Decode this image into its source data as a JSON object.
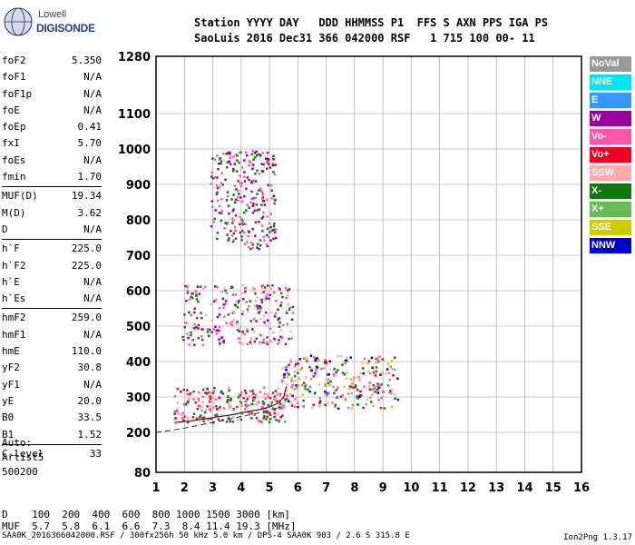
{
  "logo": {
    "brand": "Lowell",
    "name": "DIGISONDE"
  },
  "header": {
    "line1": "Station YYYY DAY   DDD HHMMSS P1  FFS S AXN PPS IGA PS",
    "line2": "SaoLuis 2016 Dec31 366 042000 RSF   1 715 100 00- 11"
  },
  "params": [
    {
      "k": "foF2",
      "v": "5.350"
    },
    {
      "k": "foF1",
      "v": "N/A"
    },
    {
      "k": "foF1p",
      "v": "N/A"
    },
    {
      "k": "foE",
      "v": "N/A"
    },
    {
      "k": "foEp",
      "v": "0.41"
    },
    {
      "k": "fxI",
      "v": "5.70"
    },
    {
      "k": "foEs",
      "v": "N/A"
    },
    {
      "k": "fmin",
      "v": "1.70"
    },
    {
      "sep": true
    },
    {
      "k": "MUF(D)",
      "v": "19.34"
    },
    {
      "k": "M(D)",
      "v": "3.62"
    },
    {
      "k": "D",
      "v": "N/A"
    },
    {
      "sep": true
    },
    {
      "k": "h`F",
      "v": "225.0"
    },
    {
      "k": "h`F2",
      "v": "225.0"
    },
    {
      "k": "h`E",
      "v": "N/A"
    },
    {
      "k": "h`Es",
      "v": "N/A"
    },
    {
      "sep": true
    },
    {
      "k": "hmF2",
      "v": "259.0"
    },
    {
      "k": "hmF1",
      "v": "N/A"
    },
    {
      "k": "hmE",
      "v": "110.0"
    },
    {
      "k": "yF2",
      "v": "30.8"
    },
    {
      "k": "yF1",
      "v": "N/A"
    },
    {
      "k": "yE",
      "v": "20.0"
    },
    {
      "k": "B0",
      "v": "33.5"
    },
    {
      "k": "B1",
      "v": "1.52"
    },
    {
      "sep": true
    },
    {
      "k": "C-level",
      "v": "33"
    }
  ],
  "auto": {
    "l1": "Auto:",
    "l2": "Artist5",
    "l3": "500200"
  },
  "legend": [
    {
      "label": "NoVal",
      "bg": "#999999",
      "fg": "#ffffff"
    },
    {
      "label": "NNE",
      "bg": "#00e5ee",
      "fg": "#ffffff"
    },
    {
      "label": "E",
      "bg": "#3399ff",
      "fg": "#ffffff"
    },
    {
      "label": "W",
      "bg": "#990099",
      "fg": "#ffffff"
    },
    {
      "label": "Vo-",
      "bg": "#ff55aa",
      "fg": "#ffffff"
    },
    {
      "label": "Vo+",
      "bg": "#ee0022",
      "fg": "#ffffff"
    },
    {
      "label": "SSW",
      "bg": "#ffaaaa",
      "fg": "#ffffff"
    },
    {
      "label": "X-",
      "bg": "#117711",
      "fg": "#ffffff"
    },
    {
      "label": "X+",
      "bg": "#66bb55",
      "fg": "#ffffff"
    },
    {
      "label": "SSE",
      "bg": "#cccc00",
      "fg": "#ffffff"
    },
    {
      "label": "NNW",
      "bg": "#0000cc",
      "fg": "#ffffff"
    }
  ],
  "muf_table": {
    "d_label": "D  ",
    "d_values": "  100  200  400  600  800 1000 1500 3000 [km]",
    "m_label": "MUF",
    "m_values": "  5.7  5.8  6.1  6.6  7.3  8.4 11.4 19.3 [MHz]"
  },
  "footer": "SAA0K_2016366042000.RSF / 300fx256h 50 kHz 5.0 km / DPS-4 SAA0K 903 / 2.6 S 315.8 E",
  "version": "Ion2Png 1.3.17",
  "chart_data": {
    "type": "scatter",
    "x_ticks": [
      1,
      2,
      3,
      4,
      5,
      6,
      7,
      8,
      9,
      10,
      11,
      12,
      13,
      14,
      15,
      16
    ],
    "xlim": [
      1,
      16
    ],
    "y_ticks": [
      80,
      200,
      300,
      400,
      500,
      600,
      700,
      800,
      900,
      1000,
      1100,
      1280
    ],
    "y_range": [
      80,
      1280
    ],
    "grid": true,
    "trace": {
      "x": [
        1.7,
        2.2,
        2.7,
        3.2,
        3.7,
        4.2,
        4.7,
        5.0,
        5.3,
        5.5,
        5.6
      ],
      "y": [
        228,
        232,
        238,
        244,
        250,
        258,
        265,
        272,
        282,
        300,
        330
      ]
    },
    "dashed_trace": {
      "x": [
        1.0,
        1.5,
        2.0,
        2.5,
        3.0,
        3.5,
        4.0,
        4.5,
        5.0,
        5.3
      ],
      "y": [
        200,
        205,
        212,
        220,
        228,
        236,
        245,
        253,
        262,
        270
      ]
    },
    "clusters": [
      {
        "x": [
          1.6,
          5.6
        ],
        "y": [
          230,
          330
        ],
        "colors": [
          "#ee0022",
          "#ff55aa",
          "#117711",
          "#ffaaaa"
        ]
      },
      {
        "x": [
          5.4,
          9.5
        ],
        "y": [
          270,
          420
        ],
        "colors": [
          "#ee0022",
          "#ff55aa",
          "#ffaaaa",
          "#cccc00",
          "#117711",
          "#0000cc",
          "#999999"
        ]
      },
      {
        "x": [
          1.9,
          5.8
        ],
        "y": [
          450,
          620
        ],
        "colors": [
          "#ff55aa",
          "#117711",
          "#ffaaaa",
          "#990099"
        ]
      },
      {
        "x": [
          2.9,
          5.2
        ],
        "y": [
          720,
          1000
        ],
        "colors": [
          "#ff55aa",
          "#990099",
          "#117711"
        ]
      }
    ]
  }
}
